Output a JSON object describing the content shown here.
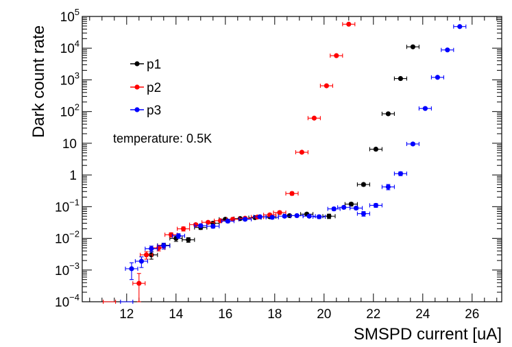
{
  "chart_data": {
    "type": "scatter",
    "xlabel": "SMSPD current [uA]",
    "ylabel": "Dark count rate",
    "xlim": [
      10.2,
      27.2
    ],
    "ylim": [
      0.0001,
      100000
    ],
    "yscale": "log",
    "grid": false,
    "legend_position": "upper-left",
    "annotation": "temperature: 0.5K",
    "x_ticks": [
      "12",
      "14",
      "16",
      "18",
      "20",
      "22",
      "24",
      "26"
    ],
    "y_ticks": [
      {
        "base": "10",
        "exp": "5"
      },
      {
        "base": "10",
        "exp": "4"
      },
      {
        "base": "10",
        "exp": "3"
      },
      {
        "base": "10",
        "exp": "2"
      },
      {
        "base": "10",
        "exp": ""
      },
      {
        "base": "1",
        "exp": ""
      },
      {
        "base": "10",
        "exp": "−1"
      },
      {
        "base": "10",
        "exp": "−2"
      },
      {
        "base": "10",
        "exp": "−3"
      },
      {
        "base": "10",
        "exp": "−4"
      }
    ],
    "series": [
      {
        "name": "p1",
        "color": "#000000",
        "points": [
          {
            "x": 13.0,
            "y": 0.003,
            "yerr_lo": 0.0008,
            "yerr_hi": 0.0008
          },
          {
            "x": 13.5,
            "y": 0.006,
            "yerr_lo": 0.001,
            "yerr_hi": 0.001
          },
          {
            "x": 14.0,
            "y": 0.01,
            "yerr_lo": 0.002,
            "yerr_hi": 0.002
          },
          {
            "x": 14.5,
            "y": 0.009,
            "yerr_lo": 0.0015,
            "yerr_hi": 0.0015
          },
          {
            "x": 15.0,
            "y": 0.022,
            "yerr_lo": 0.003,
            "yerr_hi": 0.003
          },
          {
            "x": 15.5,
            "y": 0.03,
            "yerr_lo": 0.004,
            "yerr_hi": 0.004
          },
          {
            "x": 16.0,
            "y": 0.04,
            "yerr_lo": 0.004,
            "yerr_hi": 0.004
          },
          {
            "x": 16.6,
            "y": 0.042,
            "yerr_lo": 0.004,
            "yerr_hi": 0.004
          },
          {
            "x": 17.2,
            "y": 0.045,
            "yerr_lo": 0.004,
            "yerr_hi": 0.004
          },
          {
            "x": 17.8,
            "y": 0.048,
            "yerr_lo": 0.005,
            "yerr_hi": 0.005
          },
          {
            "x": 18.6,
            "y": 0.052,
            "yerr_lo": 0.005,
            "yerr_hi": 0.005
          },
          {
            "x": 19.3,
            "y": 0.058,
            "yerr_lo": 0.006,
            "yerr_hi": 0.006
          },
          {
            "x": 20.2,
            "y": 0.05,
            "yerr_lo": 0.008,
            "yerr_hi": 0.008
          },
          {
            "x": 21.1,
            "y": 0.12,
            "yerr_lo": 0.015,
            "yerr_hi": 0.015
          },
          {
            "x": 21.6,
            "y": 0.5,
            "yerr_lo": 0.05,
            "yerr_hi": 0.05
          },
          {
            "x": 22.1,
            "y": 6.5,
            "yerr_lo": 0.5,
            "yerr_hi": 0.5
          },
          {
            "x": 22.6,
            "y": 85,
            "yerr_lo": 5,
            "yerr_hi": 5
          },
          {
            "x": 23.1,
            "y": 1100,
            "yerr_lo": 50,
            "yerr_hi": 50
          },
          {
            "x": 23.6,
            "y": 11000,
            "yerr_lo": 500,
            "yerr_hi": 500
          }
        ]
      },
      {
        "name": "p2",
        "color": "#ff0000",
        "points": [
          {
            "x": 11.3,
            "y": 0.0001,
            "yerr_lo": 0,
            "yerr_hi": 0
          },
          {
            "x": 12.5,
            "y": 0.00038,
            "yerr_lo": 0.00028,
            "yerr_hi": 0.0004
          },
          {
            "x": 12.8,
            "y": 0.003,
            "yerr_lo": 0.0008,
            "yerr_hi": 0.0008
          },
          {
            "x": 13.3,
            "y": 0.005,
            "yerr_lo": 0.001,
            "yerr_hi": 0.001
          },
          {
            "x": 13.8,
            "y": 0.013,
            "yerr_lo": 0.002,
            "yerr_hi": 0.002
          },
          {
            "x": 14.3,
            "y": 0.02,
            "yerr_lo": 0.003,
            "yerr_hi": 0.003
          },
          {
            "x": 14.8,
            "y": 0.027,
            "yerr_lo": 0.003,
            "yerr_hi": 0.003
          },
          {
            "x": 15.3,
            "y": 0.032,
            "yerr_lo": 0.003,
            "yerr_hi": 0.003
          },
          {
            "x": 15.8,
            "y": 0.036,
            "yerr_lo": 0.003,
            "yerr_hi": 0.003
          },
          {
            "x": 16.3,
            "y": 0.04,
            "yerr_lo": 0.004,
            "yerr_hi": 0.004
          },
          {
            "x": 16.8,
            "y": 0.043,
            "yerr_lo": 0.004,
            "yerr_hi": 0.004
          },
          {
            "x": 17.3,
            "y": 0.047,
            "yerr_lo": 0.004,
            "yerr_hi": 0.004
          },
          {
            "x": 17.8,
            "y": 0.055,
            "yerr_lo": 0.006,
            "yerr_hi": 0.006
          },
          {
            "x": 18.2,
            "y": 0.065,
            "yerr_lo": 0.007,
            "yerr_hi": 0.007
          },
          {
            "x": 18.7,
            "y": 0.26,
            "yerr_lo": 0.03,
            "yerr_hi": 0.03
          },
          {
            "x": 19.1,
            "y": 5.2,
            "yerr_lo": 0.4,
            "yerr_hi": 0.4
          },
          {
            "x": 19.6,
            "y": 62,
            "yerr_lo": 4,
            "yerr_hi": 4
          },
          {
            "x": 20.1,
            "y": 650,
            "yerr_lo": 30,
            "yerr_hi": 30
          },
          {
            "x": 20.5,
            "y": 5800,
            "yerr_lo": 300,
            "yerr_hi": 300
          },
          {
            "x": 21.0,
            "y": 57000,
            "yerr_lo": 2000,
            "yerr_hi": 2000
          }
        ]
      },
      {
        "name": "p3",
        "color": "#0000ff",
        "points": [
          {
            "x": 12.0,
            "y": 0.0001,
            "yerr_lo": 0,
            "yerr_hi": 0
          },
          {
            "x": 12.2,
            "y": 0.0011,
            "yerr_lo": 0.0006,
            "yerr_hi": 0.0006
          },
          {
            "x": 12.6,
            "y": 0.0019,
            "yerr_lo": 0.0007,
            "yerr_hi": 0.0007
          },
          {
            "x": 13.0,
            "y": 0.0047,
            "yerr_lo": 0.001,
            "yerr_hi": 0.001
          },
          {
            "x": 13.5,
            "y": 0.0058,
            "yerr_lo": 0.0012,
            "yerr_hi": 0.0012
          },
          {
            "x": 14.1,
            "y": 0.012,
            "yerr_lo": 0.002,
            "yerr_hi": 0.002
          },
          {
            "x": 15.0,
            "y": 0.025,
            "yerr_lo": 0.003,
            "yerr_hi": 0.003
          },
          {
            "x": 15.5,
            "y": 0.024,
            "yerr_lo": 0.003,
            "yerr_hi": 0.003
          },
          {
            "x": 16.1,
            "y": 0.035,
            "yerr_lo": 0.004,
            "yerr_hi": 0.004
          },
          {
            "x": 16.8,
            "y": 0.04,
            "yerr_lo": 0.004,
            "yerr_hi": 0.004
          },
          {
            "x": 17.4,
            "y": 0.048,
            "yerr_lo": 0.005,
            "yerr_hi": 0.005
          },
          {
            "x": 17.9,
            "y": 0.046,
            "yerr_lo": 0.005,
            "yerr_hi": 0.005
          },
          {
            "x": 18.4,
            "y": 0.05,
            "yerr_lo": 0.005,
            "yerr_hi": 0.005
          },
          {
            "x": 18.9,
            "y": 0.052,
            "yerr_lo": 0.005,
            "yerr_hi": 0.005
          },
          {
            "x": 19.4,
            "y": 0.05,
            "yerr_lo": 0.005,
            "yerr_hi": 0.005
          },
          {
            "x": 19.8,
            "y": 0.048,
            "yerr_lo": 0.006,
            "yerr_hi": 0.006
          },
          {
            "x": 20.4,
            "y": 0.085,
            "yerr_lo": 0.01,
            "yerr_hi": 0.01
          },
          {
            "x": 20.8,
            "y": 0.095,
            "yerr_lo": 0.01,
            "yerr_hi": 0.01
          },
          {
            "x": 21.3,
            "y": 0.09,
            "yerr_lo": 0.01,
            "yerr_hi": 0.01
          },
          {
            "x": 21.6,
            "y": 0.06,
            "yerr_lo": 0.01,
            "yerr_hi": 0.01
          },
          {
            "x": 22.1,
            "y": 0.11,
            "yerr_lo": 0.015,
            "yerr_hi": 0.015
          },
          {
            "x": 22.6,
            "y": 0.42,
            "yerr_lo": 0.08,
            "yerr_hi": 0.08
          },
          {
            "x": 23.1,
            "y": 1.1,
            "yerr_lo": 0.15,
            "yerr_hi": 0.15
          },
          {
            "x": 23.6,
            "y": 9.5,
            "yerr_lo": 0.8,
            "yerr_hi": 0.8
          },
          {
            "x": 24.1,
            "y": 125,
            "yerr_lo": 8,
            "yerr_hi": 8
          },
          {
            "x": 24.6,
            "y": 1200,
            "yerr_lo": 60,
            "yerr_hi": 60
          },
          {
            "x": 25.0,
            "y": 8800,
            "yerr_lo": 400,
            "yerr_hi": 400
          },
          {
            "x": 25.5,
            "y": 48000,
            "yerr_lo": 2000,
            "yerr_hi": 2000
          }
        ]
      }
    ]
  }
}
